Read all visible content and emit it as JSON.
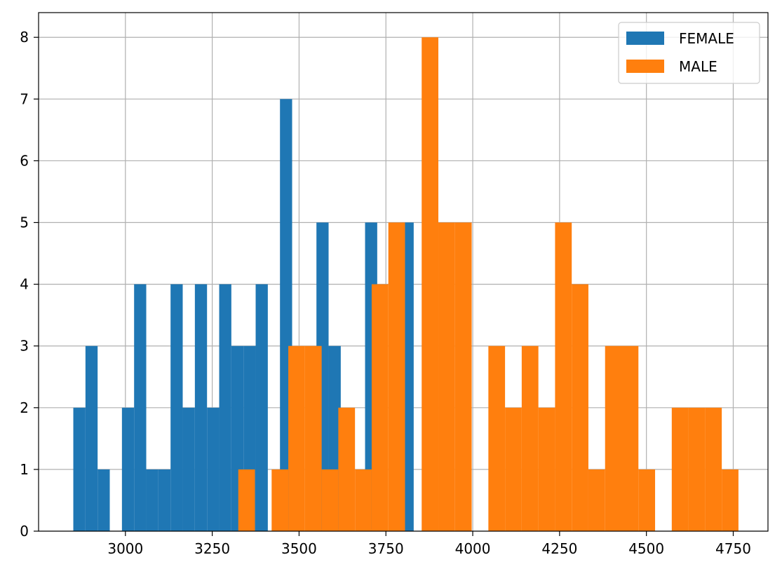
{
  "chart_data": {
    "type": "bar",
    "chart_subtype": "overlaid-histogram",
    "title": "",
    "xlabel": "",
    "ylabel": "",
    "xlim": [
      2750,
      4850
    ],
    "ylim": [
      0,
      8.4
    ],
    "xticks": [
      3000,
      3250,
      3500,
      3750,
      4000,
      4250,
      4500,
      4750
    ],
    "yticks": [
      0,
      1,
      2,
      3,
      4,
      5,
      6,
      7,
      8
    ],
    "grid": true,
    "legend_position": "top-right",
    "series": [
      {
        "name": "FEMALE",
        "color": "#1f77b4",
        "bins": [
          {
            "x0": 2850,
            "x1": 2885,
            "count": 2
          },
          {
            "x0": 2885,
            "x1": 2920,
            "count": 3
          },
          {
            "x0": 2920,
            "x1": 2955,
            "count": 1
          },
          {
            "x0": 2955,
            "x1": 2990,
            "count": 0
          },
          {
            "x0": 2990,
            "x1": 3025,
            "count": 2
          },
          {
            "x0": 3025,
            "x1": 3060,
            "count": 4
          },
          {
            "x0": 3060,
            "x1": 3095,
            "count": 1
          },
          {
            "x0": 3095,
            "x1": 3130,
            "count": 1
          },
          {
            "x0": 3130,
            "x1": 3165,
            "count": 4
          },
          {
            "x0": 3165,
            "x1": 3200,
            "count": 2
          },
          {
            "x0": 3200,
            "x1": 3235,
            "count": 4
          },
          {
            "x0": 3235,
            "x1": 3270,
            "count": 2
          },
          {
            "x0": 3270,
            "x1": 3305,
            "count": 4
          },
          {
            "x0": 3305,
            "x1": 3340,
            "count": 3
          },
          {
            "x0": 3340,
            "x1": 3375,
            "count": 3
          },
          {
            "x0": 3375,
            "x1": 3410,
            "count": 4
          },
          {
            "x0": 3410,
            "x1": 3445,
            "count": 0
          },
          {
            "x0": 3445,
            "x1": 3480,
            "count": 7
          },
          {
            "x0": 3480,
            "x1": 3515,
            "count": 0
          },
          {
            "x0": 3515,
            "x1": 3550,
            "count": 0
          },
          {
            "x0": 3550,
            "x1": 3585,
            "count": 5
          },
          {
            "x0": 3585,
            "x1": 3620,
            "count": 3
          },
          {
            "x0": 3620,
            "x1": 3655,
            "count": 0
          },
          {
            "x0": 3655,
            "x1": 3690,
            "count": 0
          },
          {
            "x0": 3690,
            "x1": 3725,
            "count": 5
          },
          {
            "x0": 3725,
            "x1": 3760,
            "count": 0
          },
          {
            "x0": 3760,
            "x1": 3795,
            "count": 0
          },
          {
            "x0": 3795,
            "x1": 3830,
            "count": 5
          }
        ]
      },
      {
        "name": "MALE",
        "color": "#ff7f0e",
        "bins": [
          {
            "x0": 3325,
            "x1": 3373,
            "count": 1
          },
          {
            "x0": 3373,
            "x1": 3421,
            "count": 0
          },
          {
            "x0": 3421,
            "x1": 3469,
            "count": 1
          },
          {
            "x0": 3469,
            "x1": 3517,
            "count": 3
          },
          {
            "x0": 3517,
            "x1": 3565,
            "count": 3
          },
          {
            "x0": 3565,
            "x1": 3613,
            "count": 1
          },
          {
            "x0": 3613,
            "x1": 3661,
            "count": 2
          },
          {
            "x0": 3661,
            "x1": 3709,
            "count": 1
          },
          {
            "x0": 3709,
            "x1": 3757,
            "count": 4
          },
          {
            "x0": 3757,
            "x1": 3805,
            "count": 5
          },
          {
            "x0": 3805,
            "x1": 3853,
            "count": 0
          },
          {
            "x0": 3853,
            "x1": 3901,
            "count": 8
          },
          {
            "x0": 3901,
            "x1": 3949,
            "count": 5
          },
          {
            "x0": 3949,
            "x1": 3997,
            "count": 5
          },
          {
            "x0": 3997,
            "x1": 4045,
            "count": 0
          },
          {
            "x0": 4045,
            "x1": 4093,
            "count": 3
          },
          {
            "x0": 4093,
            "x1": 4141,
            "count": 2
          },
          {
            "x0": 4141,
            "x1": 4189,
            "count": 3
          },
          {
            "x0": 4189,
            "x1": 4237,
            "count": 2
          },
          {
            "x0": 4237,
            "x1": 4285,
            "count": 5
          },
          {
            "x0": 4285,
            "x1": 4333,
            "count": 4
          },
          {
            "x0": 4333,
            "x1": 4381,
            "count": 1
          },
          {
            "x0": 4381,
            "x1": 4429,
            "count": 3
          },
          {
            "x0": 4429,
            "x1": 4477,
            "count": 3
          },
          {
            "x0": 4477,
            "x1": 4525,
            "count": 1
          },
          {
            "x0": 4525,
            "x1": 4573,
            "count": 0
          },
          {
            "x0": 4573,
            "x1": 4621,
            "count": 2
          },
          {
            "x0": 4621,
            "x1": 4669,
            "count": 2
          },
          {
            "x0": 4669,
            "x1": 4717,
            "count": 2
          },
          {
            "x0": 4717,
            "x1": 4765,
            "count": 1
          }
        ]
      }
    ]
  }
}
